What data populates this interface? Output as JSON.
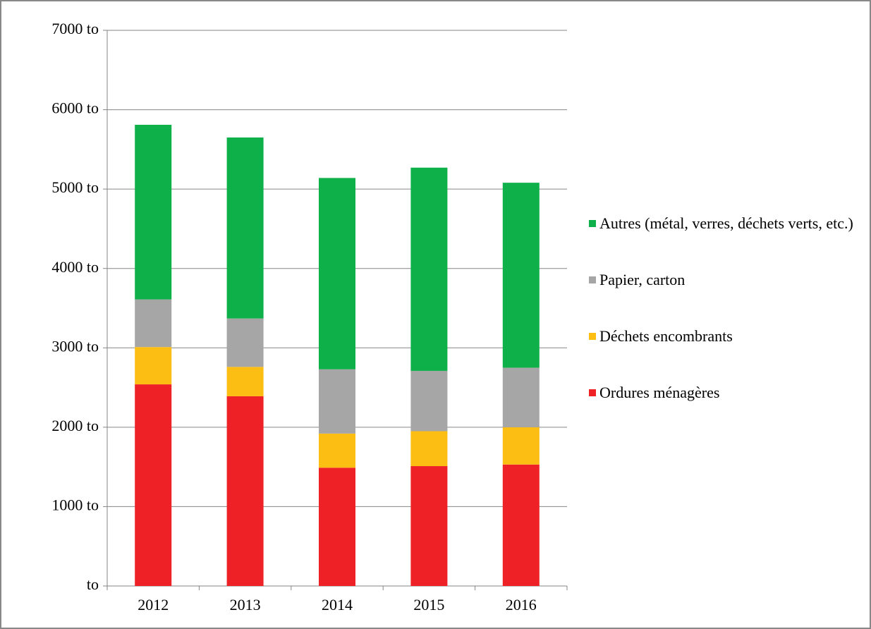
{
  "chart_data": {
    "type": "stacked_bar",
    "categories": [
      "2012",
      "2013",
      "2014",
      "2015",
      "2016"
    ],
    "series": [
      {
        "name": "Ordures ménagères",
        "color": "#ee2226",
        "values": [
          2540,
          2390,
          1490,
          1510,
          1530
        ]
      },
      {
        "name": "Déchets encombrants",
        "color": "#fdbe14",
        "values": [
          470,
          370,
          430,
          440,
          470
        ]
      },
      {
        "name": "Papier, carton",
        "color": "#a6a6a6",
        "values": [
          600,
          610,
          810,
          760,
          750
        ]
      },
      {
        "name": "Autres (métal, verres, déchets verts, etc.)",
        "color": "#0eb04a",
        "values": [
          2200,
          2280,
          2410,
          2560,
          2330
        ]
      }
    ],
    "ylim": [
      0,
      7000
    ],
    "yticks": [
      {
        "value": 0,
        "label": "to"
      },
      {
        "value": 1000,
        "label": "1000 to"
      },
      {
        "value": 2000,
        "label": "2000 to"
      },
      {
        "value": 3000,
        "label": "3000 to"
      },
      {
        "value": 4000,
        "label": "4000 to"
      },
      {
        "value": 5000,
        "label": "5000 to"
      },
      {
        "value": 6000,
        "label": "6000 to"
      },
      {
        "value": 7000,
        "label": "7000 to"
      }
    ],
    "grid": true,
    "legend": "right"
  }
}
